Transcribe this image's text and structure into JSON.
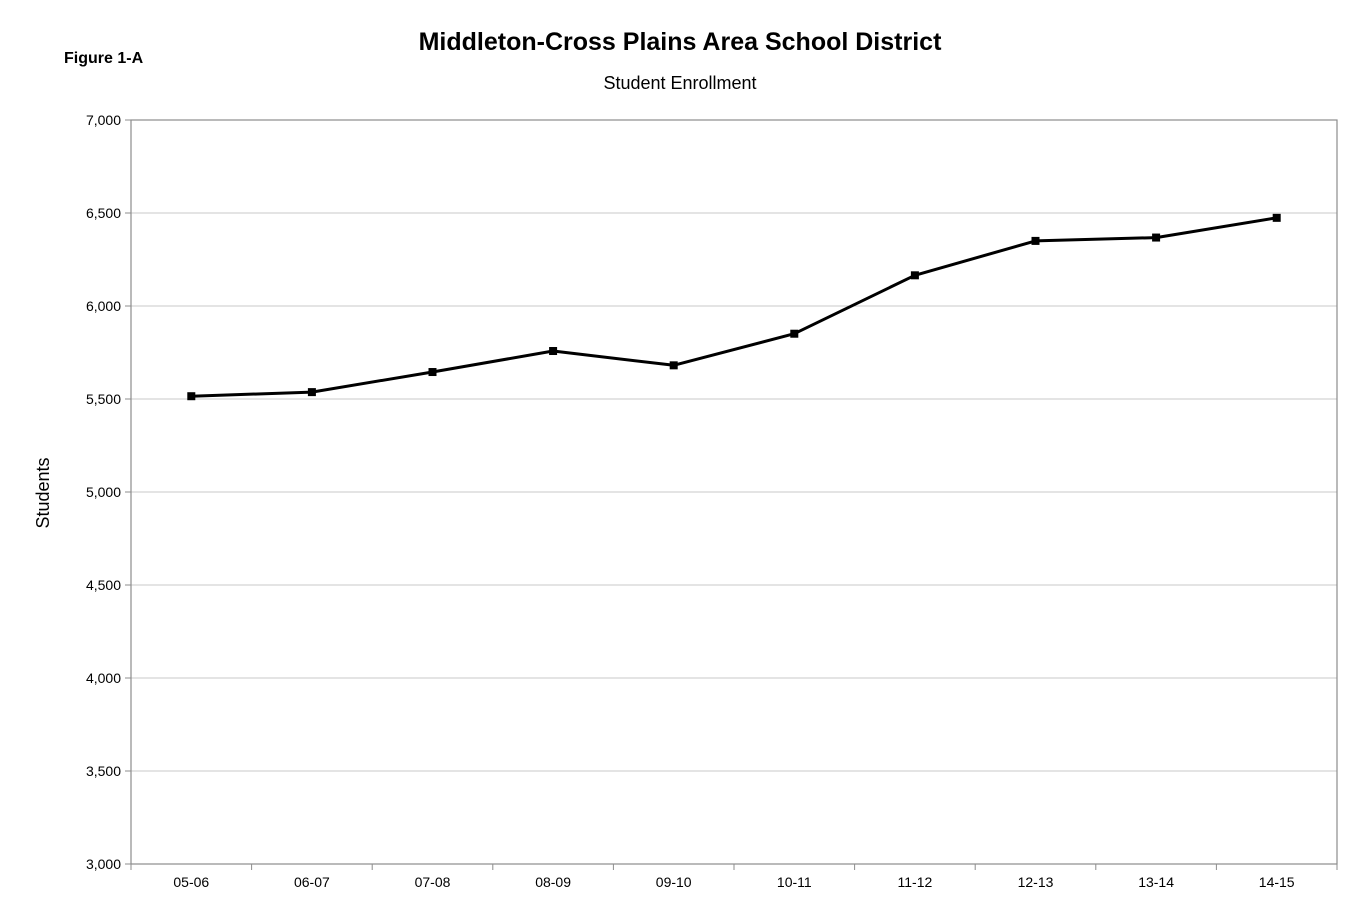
{
  "figure_label": "Figure 1-A",
  "chart_data": {
    "type": "line",
    "title": "Middleton-Cross Plains Area School District",
    "subtitle": "Student Enrollment",
    "xlabel": "",
    "ylabel": "Students",
    "ylim": [
      3000,
      7000
    ],
    "y_ticks": [
      "3,000",
      "3,500",
      "4,000",
      "4,500",
      "5,000",
      "5,500",
      "6,000",
      "6,500",
      "7,000"
    ],
    "y_tick_values": [
      3000,
      3500,
      4000,
      4500,
      5000,
      5500,
      6000,
      6500,
      7000
    ],
    "categories": [
      "05-06",
      "06-07",
      "07-08",
      "08-09",
      "09-10",
      "10-11",
      "11-12",
      "12-13",
      "13-14",
      "14-15"
    ],
    "series": [
      {
        "values": [
          5515,
          5537,
          5645,
          5758,
          5681,
          5851,
          6165,
          6350,
          6368,
          6474
        ],
        "color": "#000000",
        "marker": "square"
      }
    ],
    "grid": true,
    "legend": "none"
  }
}
